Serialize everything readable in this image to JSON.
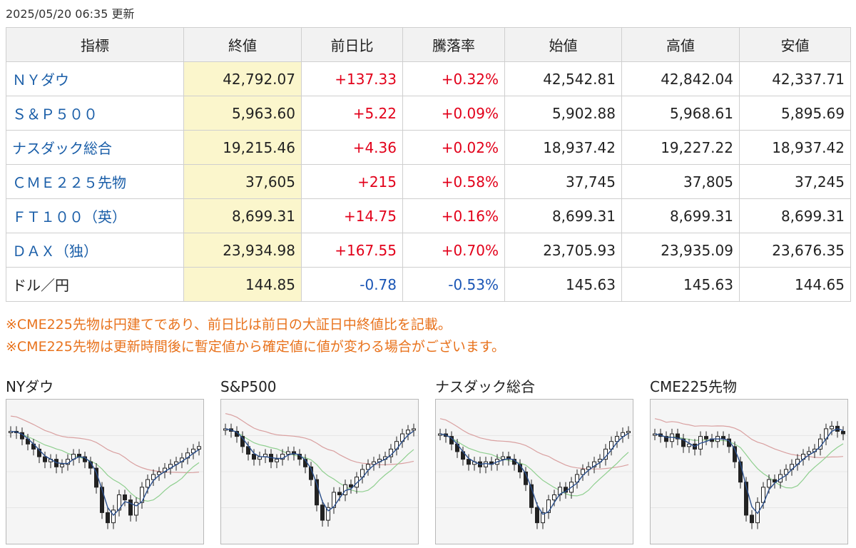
{
  "updated": "2025/05/20 06:35 更新",
  "table": {
    "headers": [
      "指標",
      "終値",
      "前日比",
      "騰落率",
      "始値",
      "高値",
      "安値"
    ],
    "rows": [
      {
        "name": "ＮＹダウ",
        "link": true,
        "close": "42,792.07",
        "change": "+137.33",
        "pct": "+0.32%",
        "open": "42,542.81",
        "high": "42,842.04",
        "low": "42,337.71",
        "dir": "up"
      },
      {
        "name": "Ｓ＆Ｐ５００",
        "link": true,
        "close": "5,963.60",
        "change": "+5.22",
        "pct": "+0.09%",
        "open": "5,902.88",
        "high": "5,968.61",
        "low": "5,895.69",
        "dir": "up"
      },
      {
        "name": "ナスダック総合",
        "link": true,
        "close": "19,215.46",
        "change": "+4.36",
        "pct": "+0.02%",
        "open": "18,937.42",
        "high": "19,227.22",
        "low": "18,937.42",
        "dir": "up"
      },
      {
        "name": "ＣＭＥ２２５先物",
        "link": true,
        "close": "37,605",
        "change": "+215",
        "pct": "+0.58%",
        "open": "37,745",
        "high": "37,805",
        "low": "37,245",
        "dir": "up"
      },
      {
        "name": "ＦＴ１００（英）",
        "link": true,
        "close": "8,699.31",
        "change": "+14.75",
        "pct": "+0.16%",
        "open": "8,699.31",
        "high": "8,699.31",
        "low": "8,699.31",
        "dir": "up"
      },
      {
        "name": "ＤＡＸ（独）",
        "link": true,
        "close": "23,934.98",
        "change": "+167.55",
        "pct": "+0.70%",
        "open": "23,705.93",
        "high": "23,935.09",
        "low": "23,676.35",
        "dir": "up"
      },
      {
        "name": "ドル／円",
        "link": false,
        "close": "144.85",
        "change": "-0.78",
        "pct": "-0.53%",
        "open": "145.63",
        "high": "145.63",
        "low": "144.65",
        "dir": "down"
      }
    ]
  },
  "notes": [
    "※CME225先物は円建てであり、前日比は前日の大証日中終値比を記載。",
    "※CME225先物は更新時間後に暫定値から確定値に値が変わる場合がございます。"
  ],
  "colors": {
    "up": "#e2001a",
    "down": "#1a55b5",
    "link": "#1a5ea8",
    "note": "#e8721c",
    "close_bg": "#fbf6cc",
    "ma_short": "#2b4f8c",
    "ma_mid": "#8fcf8f",
    "ma_long": "#d9a0a0"
  },
  "charts": [
    {
      "title": "NYダウ",
      "type": "candlestick",
      "levels": [
        0.84,
        0.83,
        0.78,
        0.74,
        0.7,
        0.64,
        0.6,
        0.62,
        0.56,
        0.58,
        0.62,
        0.66,
        0.64,
        0.6,
        0.55,
        0.4,
        0.2,
        0.12,
        0.22,
        0.34,
        0.3,
        0.18,
        0.28,
        0.4,
        0.46,
        0.5,
        0.52,
        0.55,
        0.58,
        0.6,
        0.63,
        0.67,
        0.7,
        0.72
      ]
    },
    {
      "title": "S&P500",
      "type": "candlestick",
      "levels": [
        0.86,
        0.84,
        0.8,
        0.72,
        0.66,
        0.62,
        0.64,
        0.66,
        0.6,
        0.62,
        0.66,
        0.68,
        0.66,
        0.62,
        0.56,
        0.46,
        0.26,
        0.14,
        0.24,
        0.36,
        0.34,
        0.42,
        0.4,
        0.48,
        0.54,
        0.58,
        0.6,
        0.62,
        0.64,
        0.7,
        0.76,
        0.82,
        0.85,
        0.86
      ]
    },
    {
      "title": "ナスダック総合",
      "type": "candlestick",
      "levels": [
        0.82,
        0.8,
        0.74,
        0.68,
        0.62,
        0.58,
        0.6,
        0.56,
        0.6,
        0.58,
        0.62,
        0.64,
        0.62,
        0.58,
        0.52,
        0.42,
        0.24,
        0.12,
        0.2,
        0.3,
        0.34,
        0.4,
        0.36,
        0.44,
        0.5,
        0.54,
        0.56,
        0.6,
        0.62,
        0.7,
        0.76,
        0.8,
        0.83,
        0.84
      ]
    },
    {
      "title": "CME225先物",
      "type": "candlestick",
      "levels": [
        0.82,
        0.8,
        0.76,
        0.82,
        0.78,
        0.72,
        0.74,
        0.7,
        0.8,
        0.78,
        0.76,
        0.8,
        0.78,
        0.72,
        0.6,
        0.44,
        0.18,
        0.12,
        0.28,
        0.4,
        0.46,
        0.44,
        0.5,
        0.54,
        0.58,
        0.62,
        0.66,
        0.68,
        0.7,
        0.78,
        0.86,
        0.88,
        0.84,
        0.82
      ]
    }
  ]
}
